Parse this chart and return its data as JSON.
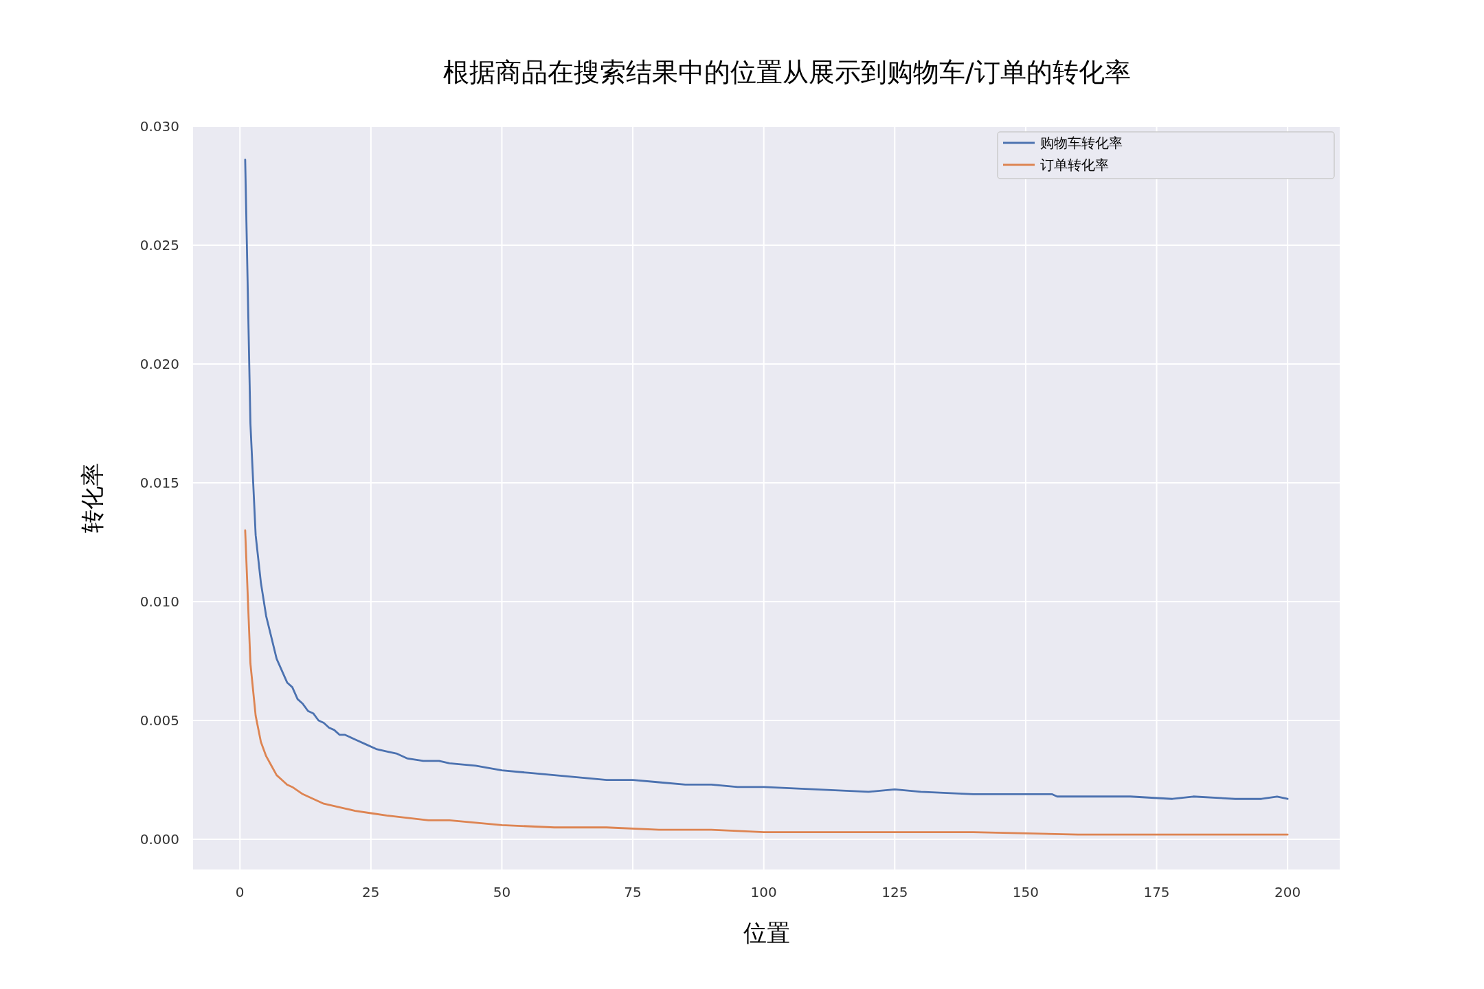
{
  "chart_data": {
    "type": "line",
    "title": "根据商品在搜索结果中的位置从展示到购物车/订单的转化率",
    "xlabel": "位置",
    "ylabel": "转化率",
    "xlim": [
      -8.95,
      209.95
    ],
    "ylim": [
      -0.00127,
      0.03
    ],
    "xticks": [
      0,
      25,
      50,
      75,
      100,
      125,
      150,
      175,
      200
    ],
    "yticks": [
      {
        "value": 0,
        "label": "0.000"
      },
      {
        "value": 0.005,
        "label": "0.005"
      },
      {
        "value": 0.01,
        "label": "0.010"
      },
      {
        "value": 0.015,
        "label": "0.015"
      },
      {
        "value": 0.02,
        "label": "0.020"
      },
      {
        "value": 0.025,
        "label": "0.025"
      },
      {
        "value": 0.03,
        "label": "0.030"
      }
    ],
    "grid": true,
    "legend": "top right",
    "line_style": "solid",
    "marker": "none",
    "series": [
      {
        "name": "购物车转化率",
        "color": "#4c72b0",
        "x": [
          1,
          2,
          3,
          4,
          5,
          6,
          7,
          8,
          9,
          10,
          11,
          12,
          13,
          14,
          15,
          16,
          17,
          18,
          19,
          20,
          22,
          24,
          26,
          28,
          30,
          32,
          35,
          38,
          40,
          45,
          50,
          55,
          60,
          65,
          70,
          75,
          80,
          85,
          90,
          95,
          100,
          110,
          120,
          125,
          130,
          140,
          150,
          155,
          156,
          160,
          170,
          178,
          182,
          190,
          195,
          198,
          200
        ],
        "values": [
          0.0286,
          0.0175,
          0.0128,
          0.0108,
          0.0094,
          0.0085,
          0.0076,
          0.0071,
          0.0066,
          0.0064,
          0.0059,
          0.0057,
          0.0054,
          0.0053,
          0.005,
          0.0049,
          0.0047,
          0.0046,
          0.0044,
          0.0044,
          0.0042,
          0.004,
          0.0038,
          0.0037,
          0.0036,
          0.0034,
          0.0033,
          0.0033,
          0.0032,
          0.0031,
          0.0029,
          0.0028,
          0.0027,
          0.0026,
          0.0025,
          0.0025,
          0.0024,
          0.0023,
          0.0023,
          0.0022,
          0.0022,
          0.0021,
          0.002,
          0.0021,
          0.002,
          0.0019,
          0.0019,
          0.0019,
          0.0018,
          0.0018,
          0.0018,
          0.0017,
          0.0018,
          0.0017,
          0.0017,
          0.0018,
          0.0017
        ]
      },
      {
        "name": "订单转化率",
        "color": "#dd8452",
        "x": [
          1,
          2,
          3,
          4,
          5,
          6,
          7,
          8,
          9,
          10,
          12,
          14,
          16,
          18,
          20,
          22,
          25,
          28,
          32,
          36,
          40,
          45,
          50,
          60,
          70,
          80,
          90,
          100,
          120,
          140,
          160,
          180,
          200
        ],
        "values": [
          0.013,
          0.0074,
          0.0052,
          0.0041,
          0.0035,
          0.0031,
          0.0027,
          0.0025,
          0.0023,
          0.0022,
          0.0019,
          0.0017,
          0.0015,
          0.0014,
          0.0013,
          0.0012,
          0.0011,
          0.001,
          0.0009,
          0.0008,
          0.0008,
          0.0007,
          0.0006,
          0.0005,
          0.0005,
          0.0004,
          0.0004,
          0.0003,
          0.0003,
          0.0003,
          0.0002,
          0.0002,
          0.0002
        ]
      }
    ]
  }
}
